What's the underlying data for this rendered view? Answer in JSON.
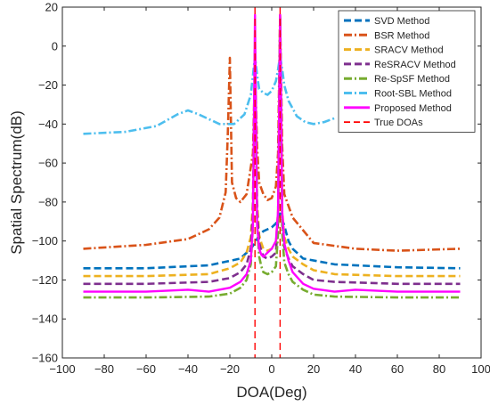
{
  "chart_data": {
    "type": "line",
    "xlabel": "DOA(Deg)",
    "ylabel": "Spatial Spectrum(dB)",
    "xlim": [
      -100,
      100
    ],
    "ylim": [
      -160,
      20
    ],
    "xticks": [
      -100,
      -80,
      -60,
      -40,
      -20,
      0,
      20,
      40,
      60,
      80,
      100
    ],
    "yticks": [
      -160,
      -140,
      -120,
      -100,
      -80,
      -60,
      -40,
      -20,
      0,
      20
    ],
    "legend_position": "top-right",
    "grid": false,
    "series": [
      {
        "name": "SVD Method",
        "color": "#0072BD",
        "dash": "dashed",
        "x": [
          -90,
          -60,
          -30,
          -15,
          -10,
          -8,
          -6,
          -4,
          -2,
          0,
          2,
          4,
          6,
          8,
          10,
          15,
          30,
          60,
          90
        ],
        "y": [
          -114,
          -114,
          -112.5,
          -109,
          -104,
          -101,
          -97,
          -95,
          -94,
          -93,
          -91,
          -86,
          -92,
          -100,
          -104,
          -109,
          -112,
          -113.5,
          -114
        ]
      },
      {
        "name": "BSR Method",
        "color": "#D95319",
        "dash": "dashdot",
        "x": [
          -90,
          -60,
          -40,
          -30,
          -25,
          -22,
          -21,
          -20,
          -19,
          -17,
          -15,
          -12,
          -9,
          -8,
          -7,
          -6,
          -4,
          -2,
          0,
          2,
          3,
          4,
          5,
          6,
          10,
          20,
          40,
          60,
          90
        ],
        "y": [
          -104,
          -102,
          -99,
          -94,
          -88,
          -75,
          -45,
          -6,
          -70,
          -78,
          -80,
          -76,
          -55,
          -10,
          -52,
          -70,
          -76,
          -79,
          -78,
          -72,
          -55,
          16,
          -52,
          -76,
          -88,
          -101,
          -104,
          -105,
          -104
        ]
      },
      {
        "name": "SRACV Method",
        "color": "#EDB120",
        "dash": "dashed",
        "x": [
          -90,
          -60,
          -30,
          -20,
          -15,
          -12,
          -10,
          -9,
          -8,
          -7,
          -6,
          -5,
          -4,
          -2,
          0,
          2,
          3,
          4,
          5,
          6,
          8,
          10,
          15,
          20,
          30,
          60,
          90
        ],
        "y": [
          -118,
          -118,
          -117,
          -114,
          -111,
          -106,
          -98,
          -80,
          -2,
          -80,
          -97,
          -101,
          -104,
          -105,
          -104,
          -101,
          -85,
          15,
          -85,
          -98,
          -104,
          -108,
          -112,
          -115,
          -117,
          -118,
          -118
        ]
      },
      {
        "name": "ReSRACV Method",
        "color": "#7E2F8E",
        "dash": "dashed",
        "x": [
          -90,
          -60,
          -30,
          -20,
          -15,
          -12,
          -10,
          -9,
          -8,
          -7,
          -6,
          -5,
          -4,
          -2,
          0,
          2,
          3,
          4,
          5,
          6,
          8,
          10,
          15,
          20,
          30,
          60,
          90
        ],
        "y": [
          -122,
          -122,
          -121,
          -119,
          -116,
          -112,
          -104,
          -85,
          -2,
          -85,
          -101,
          -105,
          -108,
          -109,
          -108,
          -106,
          -90,
          15,
          -90,
          -103,
          -109,
          -113,
          -117,
          -120,
          -121,
          -122,
          -122
        ]
      },
      {
        "name": "Re-SpSF Method",
        "color": "#77AC30",
        "dash": "dashdot",
        "x": [
          -90,
          -60,
          -30,
          -20,
          -15,
          -12,
          -10,
          -9,
          -8,
          -7,
          -6,
          -5,
          -4,
          -2,
          0,
          2,
          3,
          4,
          5,
          6,
          8,
          10,
          15,
          20,
          30,
          60,
          90
        ],
        "y": [
          -129,
          -129,
          -128.5,
          -127,
          -124,
          -120,
          -112,
          -92,
          -2,
          -92,
          -108,
          -113,
          -116,
          -117,
          -116,
          -113,
          -96,
          15,
          -96,
          -111,
          -117,
          -121,
          -125,
          -127.5,
          -128.5,
          -129,
          -129
        ]
      },
      {
        "name": "Root-SBL Method",
        "color": "#4DBEEE",
        "dash": "dashdot",
        "x": [
          -90,
          -70,
          -55,
          -45,
          -40,
          -35,
          -25,
          -18,
          -13,
          -10,
          -9,
          -8,
          -7,
          -6,
          -4,
          -2,
          0,
          2,
          3,
          4,
          5,
          6,
          8,
          12,
          16,
          20,
          25,
          30
        ],
        "y": [
          -45,
          -44,
          -41,
          -35,
          -33,
          -35,
          -40,
          -40,
          -35,
          -25,
          -15,
          -5,
          -15,
          -22,
          -24,
          -25,
          -23,
          -18,
          -12,
          -5,
          -12,
          -20,
          -28,
          -36,
          -39,
          -40,
          -39,
          -37
        ]
      },
      {
        "name": "Proposed Method",
        "color": "#FF00FF",
        "dash": "solid",
        "x": [
          -90,
          -60,
          -40,
          -30,
          -20,
          -15,
          -12,
          -10,
          -9,
          -8,
          -7,
          -6,
          -5,
          -4,
          -2,
          0,
          2,
          3,
          4,
          5,
          6,
          8,
          10,
          15,
          20,
          30,
          40,
          60,
          90
        ],
        "y": [
          -126,
          -126,
          -125,
          -126,
          -124,
          -121,
          -117,
          -110,
          -92,
          16,
          -92,
          -104,
          -107,
          -108,
          -106,
          -104,
          -100,
          -85,
          16,
          -85,
          -101,
          -110,
          -116,
          -122,
          -124.5,
          -126,
          -125,
          -126,
          -126
        ]
      }
    ],
    "reference_lines": {
      "name": "True DOAs",
      "color": "#FF0000",
      "dash": "dashed",
      "x": [
        -8,
        4
      ]
    }
  }
}
